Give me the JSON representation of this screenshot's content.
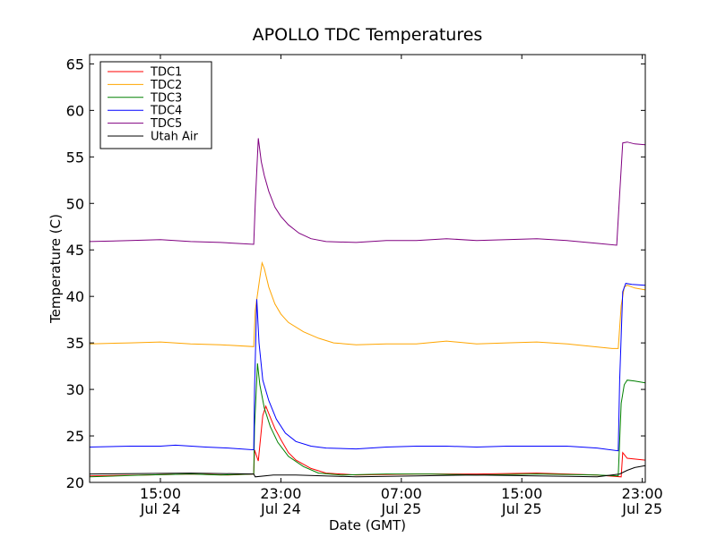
{
  "chart_data": {
    "type": "line",
    "title": "APOLLO TDC Temperatures",
    "xlabel": "Date (GMT)",
    "ylabel": "Temperature (C)",
    "x_unit": "hours since Jul 24 00:00 GMT",
    "xlim": [
      10.3,
      47.2
    ],
    "ylim": [
      20,
      66
    ],
    "yticks": [
      20,
      25,
      30,
      35,
      40,
      45,
      50,
      55,
      60,
      65
    ],
    "xticks": [
      {
        "x": 15,
        "time": "15:00",
        "date": "Jul 24"
      },
      {
        "x": 23,
        "time": "23:00",
        "date": "Jul 24"
      },
      {
        "x": 31,
        "time": "07:00",
        "date": "Jul 25"
      },
      {
        "x": 39,
        "time": "15:00",
        "date": "Jul 25"
      },
      {
        "x": 47,
        "time": "23:00",
        "date": "Jul 25"
      }
    ],
    "legend_position": "top-left",
    "series": [
      {
        "name": "TDC1",
        "color": "#ff0000",
        "points": [
          [
            10.3,
            20.7
          ],
          [
            14,
            20.8
          ],
          [
            17,
            20.9
          ],
          [
            19.5,
            20.8
          ],
          [
            21.2,
            20.9
          ],
          [
            21.25,
            23.5
          ],
          [
            21.5,
            22.3
          ],
          [
            21.8,
            27.2
          ],
          [
            22.0,
            28.2
          ],
          [
            22.3,
            27.0
          ],
          [
            22.6,
            25.8
          ],
          [
            23.0,
            24.6
          ],
          [
            23.5,
            23.2
          ],
          [
            24,
            22.4
          ],
          [
            25,
            21.5
          ],
          [
            26,
            21.0
          ],
          [
            28,
            20.8
          ],
          [
            32,
            20.9
          ],
          [
            36,
            20.9
          ],
          [
            40,
            21.0
          ],
          [
            44,
            20.8
          ],
          [
            45.6,
            20.6
          ],
          [
            45.7,
            23.2
          ],
          [
            46,
            22.6
          ],
          [
            47.2,
            22.4
          ]
        ]
      },
      {
        "name": "TDC2",
        "color": "#ffa500",
        "points": [
          [
            10.3,
            34.9
          ],
          [
            13,
            35.0
          ],
          [
            15,
            35.1
          ],
          [
            17,
            34.9
          ],
          [
            19,
            34.8
          ],
          [
            21.2,
            34.6
          ],
          [
            21.3,
            38.5
          ],
          [
            21.6,
            42.0
          ],
          [
            21.75,
            43.6
          ],
          [
            21.9,
            43.0
          ],
          [
            22.2,
            41.0
          ],
          [
            22.6,
            39.2
          ],
          [
            23.0,
            38.1
          ],
          [
            23.5,
            37.2
          ],
          [
            24.5,
            36.2
          ],
          [
            25.5,
            35.5
          ],
          [
            26.5,
            35.0
          ],
          [
            28,
            34.8
          ],
          [
            30,
            34.9
          ],
          [
            32,
            34.9
          ],
          [
            34,
            35.2
          ],
          [
            36,
            34.9
          ],
          [
            38,
            35.0
          ],
          [
            40,
            35.1
          ],
          [
            42,
            34.9
          ],
          [
            45,
            34.4
          ],
          [
            45.4,
            34.4
          ],
          [
            45.6,
            39.0
          ],
          [
            45.8,
            41.0
          ],
          [
            46,
            41.2
          ],
          [
            46.5,
            40.9
          ],
          [
            47.2,
            40.7
          ]
        ]
      },
      {
        "name": "TDC3",
        "color": "#008000",
        "points": [
          [
            10.3,
            20.6
          ],
          [
            14,
            20.8
          ],
          [
            17,
            20.9
          ],
          [
            19,
            20.8
          ],
          [
            21.2,
            20.9
          ],
          [
            21.25,
            26.0
          ],
          [
            21.45,
            32.8
          ],
          [
            21.6,
            30.5
          ],
          [
            21.9,
            28.0
          ],
          [
            22.3,
            26.0
          ],
          [
            22.8,
            24.3
          ],
          [
            23.5,
            22.8
          ],
          [
            24.5,
            21.7
          ],
          [
            25.5,
            21.0
          ],
          [
            27,
            20.8
          ],
          [
            30,
            20.9
          ],
          [
            33,
            20.9
          ],
          [
            36,
            20.8
          ],
          [
            40,
            20.9
          ],
          [
            44,
            20.8
          ],
          [
            45.4,
            20.7
          ],
          [
            45.6,
            28.5
          ],
          [
            45.8,
            30.5
          ],
          [
            46,
            31.0
          ],
          [
            46.5,
            30.9
          ],
          [
            47.2,
            30.7
          ]
        ]
      },
      {
        "name": "TDC4",
        "color": "#0000ff",
        "points": [
          [
            10.3,
            23.8
          ],
          [
            13,
            23.9
          ],
          [
            15,
            23.9
          ],
          [
            16,
            24.0
          ],
          [
            18,
            23.8
          ],
          [
            19.5,
            23.7
          ],
          [
            21.2,
            23.5
          ],
          [
            21.25,
            30.0
          ],
          [
            21.4,
            39.7
          ],
          [
            21.55,
            35.0
          ],
          [
            21.8,
            31.0
          ],
          [
            22.2,
            28.8
          ],
          [
            22.7,
            26.8
          ],
          [
            23.3,
            25.3
          ],
          [
            24,
            24.4
          ],
          [
            25,
            23.9
          ],
          [
            26,
            23.7
          ],
          [
            28,
            23.6
          ],
          [
            30,
            23.8
          ],
          [
            32,
            23.9
          ],
          [
            34,
            23.9
          ],
          [
            36,
            23.8
          ],
          [
            38,
            23.9
          ],
          [
            40,
            23.9
          ],
          [
            42,
            23.9
          ],
          [
            44,
            23.7
          ],
          [
            45.4,
            23.4
          ],
          [
            45.5,
            31.0
          ],
          [
            45.7,
            40.5
          ],
          [
            45.9,
            41.4
          ],
          [
            46.3,
            41.3
          ],
          [
            47.2,
            41.2
          ]
        ]
      },
      {
        "name": "TDC5",
        "color": "#800080",
        "points": [
          [
            10.3,
            45.9
          ],
          [
            13,
            46.0
          ],
          [
            15,
            46.1
          ],
          [
            17,
            45.9
          ],
          [
            19,
            45.8
          ],
          [
            21.2,
            45.6
          ],
          [
            21.3,
            50.0
          ],
          [
            21.5,
            57.0
          ],
          [
            21.7,
            54.5
          ],
          [
            21.9,
            53.0
          ],
          [
            22.2,
            51.3
          ],
          [
            22.6,
            49.6
          ],
          [
            23.0,
            48.6
          ],
          [
            23.5,
            47.7
          ],
          [
            24.2,
            46.8
          ],
          [
            25,
            46.2
          ],
          [
            26,
            45.9
          ],
          [
            28,
            45.8
          ],
          [
            30,
            46.0
          ],
          [
            32,
            46.0
          ],
          [
            34,
            46.2
          ],
          [
            36,
            46.0
          ],
          [
            38,
            46.1
          ],
          [
            40,
            46.2
          ],
          [
            42,
            46.0
          ],
          [
            44,
            45.7
          ],
          [
            45.3,
            45.5
          ],
          [
            45.5,
            51.0
          ],
          [
            45.7,
            56.5
          ],
          [
            46,
            56.6
          ],
          [
            46.5,
            56.4
          ],
          [
            47.2,
            56.3
          ]
        ]
      },
      {
        "name": "Utah Air",
        "color": "#000000",
        "points": [
          [
            10.3,
            20.9
          ],
          [
            17,
            21.0
          ],
          [
            21.2,
            20.9
          ],
          [
            21.3,
            20.6
          ],
          [
            22.5,
            20.8
          ],
          [
            24,
            20.8
          ],
          [
            28,
            20.6
          ],
          [
            32,
            20.7
          ],
          [
            36,
            20.8
          ],
          [
            40,
            20.7
          ],
          [
            44,
            20.6
          ],
          [
            45.5,
            20.9
          ],
          [
            46,
            21.3
          ],
          [
            46.5,
            21.6
          ],
          [
            47.2,
            21.8
          ]
        ]
      }
    ]
  }
}
